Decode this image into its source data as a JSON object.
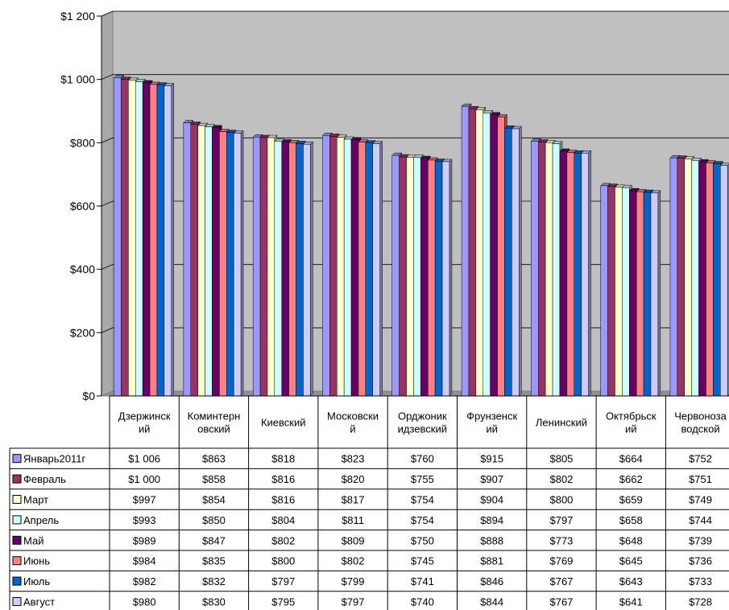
{
  "chart_data": {
    "type": "bar",
    "title": "",
    "xlabel": "",
    "ylabel": "",
    "ylim": [
      0,
      1200
    ],
    "yticks": [
      "$0",
      "$200",
      "$400",
      "$600",
      "$800",
      "$1 000",
      "$1 200"
    ],
    "categories": [
      [
        "Дзержинск",
        "ий"
      ],
      [
        "Коминтерн",
        "овский"
      ],
      [
        "Киевский"
      ],
      [
        "Московски",
        "й"
      ],
      [
        "Орджоник",
        "идзевский"
      ],
      [
        "Фрунзенск",
        "ий"
      ],
      [
        "Ленинский"
      ],
      [
        "Октябрьск",
        "ий"
      ],
      [
        "Червоноза",
        "водской"
      ]
    ],
    "series": [
      {
        "name": "Январь2011г",
        "color": "#9999ff",
        "values": [
          1006,
          863,
          818,
          823,
          760,
          915,
          805,
          664,
          752
        ],
        "labels": [
          "$1 006",
          "$863",
          "$818",
          "$823",
          "$760",
          "$915",
          "$805",
          "$664",
          "$752"
        ]
      },
      {
        "name": "Февраль",
        "color": "#993366",
        "values": [
          1000,
          858,
          816,
          820,
          755,
          907,
          802,
          662,
          751
        ],
        "labels": [
          "$1 000",
          "$858",
          "$816",
          "$820",
          "$755",
          "$907",
          "$802",
          "$662",
          "$751"
        ]
      },
      {
        "name": "Март",
        "color": "#ffffcc",
        "values": [
          997,
          854,
          816,
          817,
          754,
          904,
          800,
          659,
          749
        ],
        "labels": [
          "$997",
          "$854",
          "$816",
          "$817",
          "$754",
          "$904",
          "$800",
          "$659",
          "$749"
        ]
      },
      {
        "name": "Апрель",
        "color": "#ccffff",
        "values": [
          993,
          850,
          804,
          811,
          754,
          894,
          797,
          658,
          744
        ],
        "labels": [
          "$993",
          "$850",
          "$804",
          "$811",
          "$754",
          "$894",
          "$797",
          "$658",
          "$744"
        ]
      },
      {
        "name": "Май",
        "color": "#660066",
        "values": [
          989,
          847,
          802,
          809,
          750,
          888,
          773,
          648,
          739
        ],
        "labels": [
          "$989",
          "$847",
          "$802",
          "$809",
          "$750",
          "$888",
          "$773",
          "$648",
          "$739"
        ]
      },
      {
        "name": "Июнь",
        "color": "#ff8080",
        "values": [
          984,
          835,
          800,
          802,
          745,
          881,
          769,
          645,
          736
        ],
        "labels": [
          "$984",
          "$835",
          "$800",
          "$802",
          "$745",
          "$881",
          "$769",
          "$645",
          "$736"
        ]
      },
      {
        "name": "Июль",
        "color": "#0066cc",
        "values": [
          982,
          832,
          797,
          799,
          741,
          846,
          767,
          643,
          733
        ],
        "labels": [
          "$982",
          "$832",
          "$797",
          "$799",
          "$741",
          "$846",
          "$767",
          "$643",
          "$733"
        ]
      },
      {
        "name": "Август",
        "color": "#ccccff",
        "values": [
          980,
          830,
          795,
          797,
          740,
          844,
          767,
          641,
          728
        ],
        "labels": [
          "$980",
          "$830",
          "$795",
          "$797",
          "$740",
          "$844",
          "$767",
          "$641",
          "$728"
        ]
      }
    ],
    "grid": true,
    "legend": "data-table-left",
    "plot_background": "#c0c0c0"
  }
}
